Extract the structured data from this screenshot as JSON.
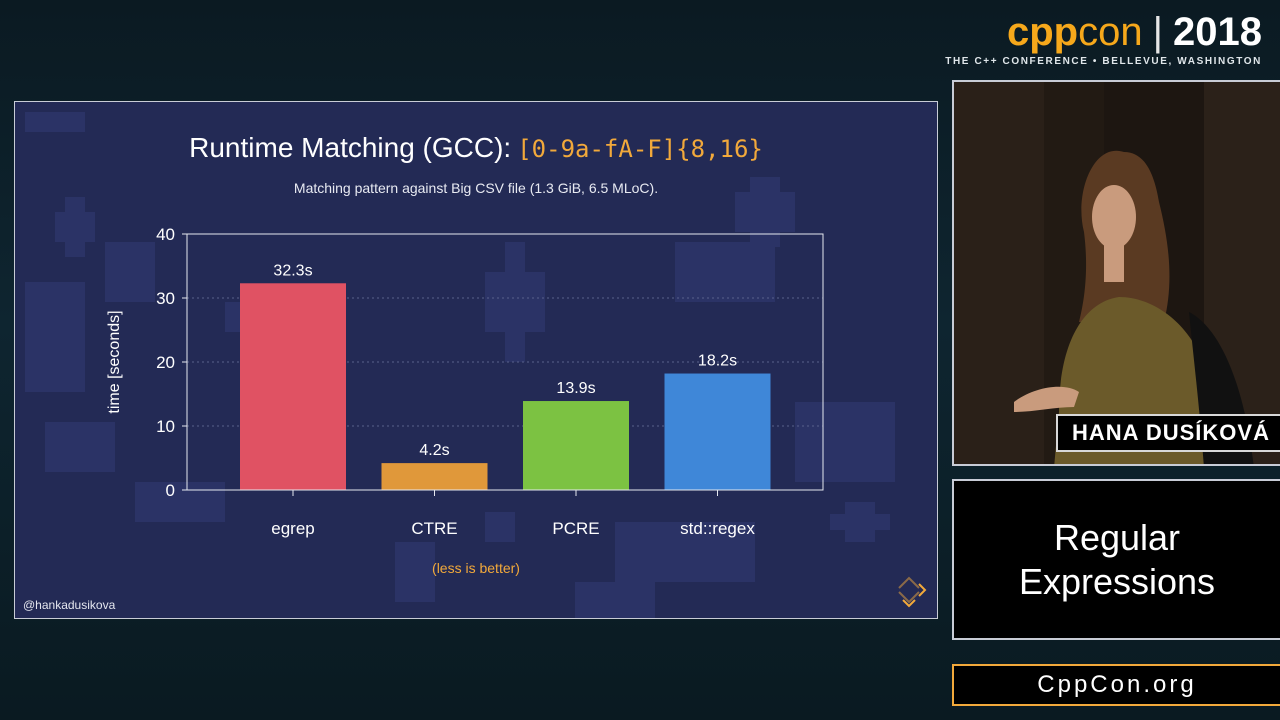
{
  "branding": {
    "cpp": "cpp",
    "con": "con",
    "separator": "|",
    "year": "2018",
    "tagline": "THE C++ CONFERENCE • BELLEVUE, WASHINGTON"
  },
  "slide": {
    "title_text": "Runtime Matching (GCC):",
    "title_code": "[0-9a-fA-F]{8,16}",
    "subtitle": "Matching pattern against Big CSV file (1.3 GiB, 6.5 MLoC).",
    "note": "(less is better)",
    "handle": "@hankadusikova"
  },
  "chart_data": {
    "type": "bar",
    "title": "",
    "xlabel": "",
    "ylabel": "time [seconds]",
    "categories": [
      "egrep",
      "CTRE",
      "PCRE",
      "std::regex"
    ],
    "values": [
      32.3,
      4.2,
      13.9,
      18.2
    ],
    "value_labels": [
      "32.3s",
      "4.2s",
      "13.9s",
      "18.2s"
    ],
    "colors": [
      "#e05263",
      "#e0983a",
      "#7cc242",
      "#3f87d8"
    ],
    "ylim": [
      0,
      40
    ],
    "yticks": [
      0,
      10,
      20,
      30,
      40
    ],
    "grid": true,
    "legend": "none"
  },
  "speaker": {
    "name": "HANA DUSÍKOVÁ"
  },
  "topic": {
    "line1": "Regular",
    "line2": "Expressions"
  },
  "site": {
    "label": "CppCon.org"
  }
}
